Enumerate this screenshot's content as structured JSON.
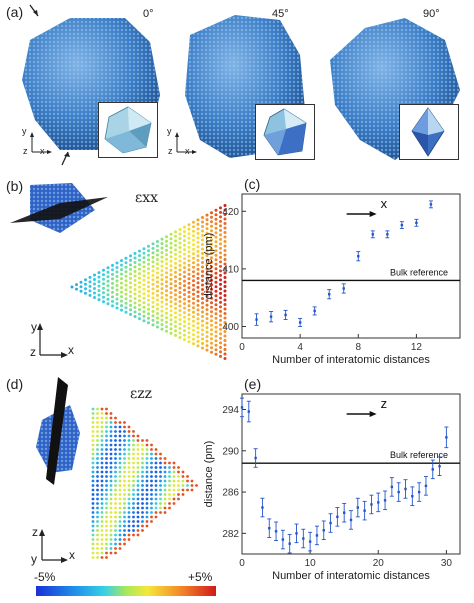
{
  "panel_a": {
    "label": "(a)",
    "angles": [
      "0°",
      "45°",
      "90°"
    ],
    "axes_small": {
      "y": "y",
      "z": "z",
      "x": "x"
    }
  },
  "panel_b": {
    "label": "(b)",
    "epsilon": "εxx",
    "axes": {
      "y": "y",
      "z": "z",
      "x": "x"
    }
  },
  "panel_d": {
    "label": "(d)",
    "epsilon": "εzz",
    "axes": {
      "z": "z",
      "y": "y",
      "x": "x"
    }
  },
  "colorbar": {
    "min_label": "-5%",
    "max_label": "+5%"
  },
  "chart_data": [
    {
      "id": "c",
      "label": "(c)",
      "type": "scatter",
      "xlabel": "Number of interatomic distances",
      "ylabel": "distance (pm)",
      "direction_label": "x",
      "xlim": [
        0,
        15
      ],
      "ylim": [
        398,
        423
      ],
      "xticks": [
        0,
        4,
        8,
        12
      ],
      "yticks": [
        400,
        410,
        420
      ],
      "reference_line": {
        "y": 408,
        "label": "Bulk reference"
      },
      "points": [
        {
          "x": 1,
          "y": 401.2,
          "err": 1.0
        },
        {
          "x": 2,
          "y": 401.7,
          "err": 0.9
        },
        {
          "x": 3,
          "y": 402.0,
          "err": 0.8
        },
        {
          "x": 4,
          "y": 400.7,
          "err": 0.7
        },
        {
          "x": 5,
          "y": 402.7,
          "err": 0.7
        },
        {
          "x": 6,
          "y": 405.6,
          "err": 0.8
        },
        {
          "x": 7,
          "y": 406.6,
          "err": 0.8
        },
        {
          "x": 8,
          "y": 412.2,
          "err": 0.8
        },
        {
          "x": 9,
          "y": 416.0,
          "err": 0.6
        },
        {
          "x": 10,
          "y": 416.0,
          "err": 0.6
        },
        {
          "x": 11,
          "y": 417.6,
          "err": 0.6
        },
        {
          "x": 12,
          "y": 418.0,
          "err": 0.6
        },
        {
          "x": 13,
          "y": 421.2,
          "err": 0.6
        }
      ]
    },
    {
      "id": "e",
      "label": "(e)",
      "type": "scatter",
      "xlabel": "Number of interatomic distances",
      "ylabel": "distance (pm)",
      "direction_label": "z",
      "xlim": [
        0,
        32
      ],
      "ylim": [
        280,
        295.5
      ],
      "xticks": [
        0,
        10,
        20,
        30
      ],
      "yticks": [
        282,
        286,
        290,
        294
      ],
      "reference_line": {
        "y": 288.8,
        "label": "Bulk reference"
      },
      "points": [
        {
          "x": 0,
          "y": 294.2,
          "err": 0.9
        },
        {
          "x": 1,
          "y": 293.8,
          "err": 1.0
        },
        {
          "x": 2,
          "y": 289.3,
          "err": 0.9
        },
        {
          "x": 3,
          "y": 284.5,
          "err": 0.9
        },
        {
          "x": 4,
          "y": 282.5,
          "err": 0.9
        },
        {
          "x": 5,
          "y": 282.2,
          "err": 0.9
        },
        {
          "x": 6,
          "y": 281.4,
          "err": 0.9
        },
        {
          "x": 7,
          "y": 281.0,
          "err": 0.9
        },
        {
          "x": 8,
          "y": 282.0,
          "err": 0.9
        },
        {
          "x": 9,
          "y": 281.5,
          "err": 0.9
        },
        {
          "x": 10,
          "y": 281.2,
          "err": 0.9
        },
        {
          "x": 11,
          "y": 281.8,
          "err": 0.9
        },
        {
          "x": 12,
          "y": 282.3,
          "err": 0.9
        },
        {
          "x": 13,
          "y": 283.0,
          "err": 0.9
        },
        {
          "x": 14,
          "y": 283.6,
          "err": 0.9
        },
        {
          "x": 15,
          "y": 284.0,
          "err": 0.9
        },
        {
          "x": 16,
          "y": 283.3,
          "err": 0.9
        },
        {
          "x": 17,
          "y": 284.5,
          "err": 0.9
        },
        {
          "x": 18,
          "y": 284.2,
          "err": 0.9
        },
        {
          "x": 19,
          "y": 284.8,
          "err": 0.9
        },
        {
          "x": 20,
          "y": 285.0,
          "err": 0.9
        },
        {
          "x": 21,
          "y": 285.2,
          "err": 0.9
        },
        {
          "x": 22,
          "y": 286.5,
          "err": 0.9
        },
        {
          "x": 23,
          "y": 286.0,
          "err": 0.9
        },
        {
          "x": 24,
          "y": 286.3,
          "err": 0.9
        },
        {
          "x": 25,
          "y": 285.6,
          "err": 0.9
        },
        {
          "x": 26,
          "y": 286.0,
          "err": 0.9
        },
        {
          "x": 27,
          "y": 286.6,
          "err": 0.9
        },
        {
          "x": 28,
          "y": 288.2,
          "err": 0.9
        },
        {
          "x": 29,
          "y": 288.5,
          "err": 0.9
        },
        {
          "x": 30,
          "y": 291.3,
          "err": 1.0
        }
      ]
    }
  ],
  "colors": {
    "particle": "#2f78c4",
    "particle_dark": "#1d4f8e",
    "point": "#2255cc",
    "inset_face": "#7fb8d8"
  }
}
